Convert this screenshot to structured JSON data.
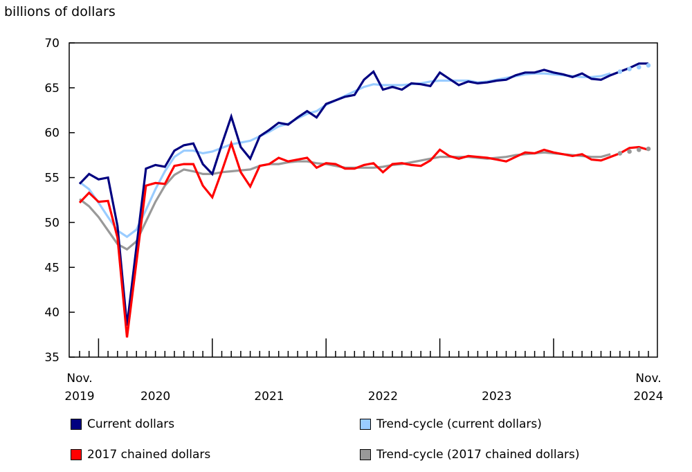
{
  "chart_data": {
    "type": "line",
    "ylabel": "billions of dollars",
    "ylim": [
      35,
      70
    ],
    "yticks": [
      35,
      40,
      45,
      50,
      55,
      60,
      65,
      70
    ],
    "x_start": "2019-11",
    "x_end": "2024-11",
    "x_tick_labels": [
      {
        "line1": "Nov.",
        "line2": "2019",
        "at": "2019-11"
      },
      {
        "line1": "",
        "line2": "2020",
        "at": "2020-07"
      },
      {
        "line1": "",
        "line2": "2021",
        "at": "2021-07"
      },
      {
        "line1": "",
        "line2": "2022",
        "at": "2022-07"
      },
      {
        "line1": "",
        "line2": "2023",
        "at": "2023-07"
      },
      {
        "line1": "Nov.",
        "line2": "2024",
        "at": "2024-11"
      }
    ],
    "grid": false,
    "legend_placement": "bottom",
    "series": [
      {
        "name": "Current dollars",
        "color": "#000080",
        "style": "line",
        "values": [
          54.3,
          55.4,
          54.8,
          55.0,
          49.6,
          38.5,
          47.3,
          56.0,
          56.4,
          56.2,
          58.0,
          58.6,
          58.8,
          56.5,
          55.4,
          58.7,
          61.8,
          58.4,
          57.1,
          59.6,
          60.3,
          61.1,
          60.9,
          61.7,
          62.4,
          61.7,
          63.2,
          63.6,
          64.0,
          64.2,
          65.9,
          66.8,
          64.8,
          65.1,
          64.8,
          65.5,
          65.4,
          65.2,
          66.7,
          66.0,
          65.3,
          65.7,
          65.5,
          65.6,
          65.8,
          65.9,
          66.4,
          66.7,
          66.7,
          67.0,
          66.7,
          66.5,
          66.2,
          66.6,
          66.0,
          65.9,
          66.4,
          66.8,
          67.2,
          67.7,
          67.7
        ]
      },
      {
        "name": "Trend-cycle (current dollars)",
        "color": "#99ccff",
        "style": "trend",
        "dotted_last": 4,
        "values": [
          54.5,
          53.7,
          52.2,
          50.6,
          49.1,
          48.4,
          49.2,
          51.4,
          53.7,
          55.7,
          57.3,
          58.0,
          58.0,
          57.7,
          57.9,
          58.3,
          58.7,
          58.9,
          59.1,
          59.6,
          60.1,
          60.7,
          61.0,
          61.6,
          62.1,
          62.4,
          63.1,
          63.6,
          64.1,
          64.6,
          65.1,
          65.4,
          65.3,
          65.3,
          65.3,
          65.4,
          65.5,
          65.7,
          65.8,
          65.8,
          65.8,
          65.8,
          65.6,
          65.7,
          65.9,
          66.1,
          66.3,
          66.5,
          66.6,
          66.6,
          66.5,
          66.4,
          66.3,
          66.2,
          66.2,
          66.3,
          66.6,
          66.8,
          67.1,
          67.3,
          67.5
        ]
      },
      {
        "name": "2017 chained dollars",
        "color": "#ff0000",
        "style": "line",
        "values": [
          52.2,
          53.3,
          52.3,
          52.4,
          48.3,
          37.2,
          45.6,
          54.1,
          54.4,
          54.3,
          56.3,
          56.5,
          56.5,
          54.1,
          52.8,
          55.7,
          58.8,
          55.6,
          54.0,
          56.3,
          56.5,
          57.2,
          56.8,
          57.0,
          57.2,
          56.1,
          56.6,
          56.5,
          56.0,
          56.0,
          56.4,
          56.6,
          55.6,
          56.5,
          56.6,
          56.4,
          56.3,
          56.9,
          58.1,
          57.4,
          57.1,
          57.4,
          57.3,
          57.2,
          57.0,
          56.8,
          57.3,
          57.8,
          57.7,
          58.1,
          57.8,
          57.6,
          57.4,
          57.6,
          57.0,
          56.9,
          57.3,
          57.7,
          58.3,
          58.4,
          58.1
        ]
      },
      {
        "name": "Trend-cycle (2017 chained dollars)",
        "color": "#999999",
        "style": "trend",
        "dotted_last": 4,
        "values": [
          52.6,
          51.8,
          50.6,
          49.1,
          47.6,
          47.0,
          47.9,
          50.1,
          52.3,
          54.1,
          55.3,
          55.9,
          55.7,
          55.4,
          55.4,
          55.6,
          55.7,
          55.8,
          55.9,
          56.3,
          56.5,
          56.5,
          56.7,
          56.8,
          56.8,
          56.6,
          56.5,
          56.3,
          56.1,
          56.1,
          56.1,
          56.1,
          56.2,
          56.4,
          56.5,
          56.7,
          56.9,
          57.1,
          57.3,
          57.3,
          57.3,
          57.3,
          57.2,
          57.1,
          57.2,
          57.3,
          57.5,
          57.6,
          57.7,
          57.8,
          57.7,
          57.6,
          57.5,
          57.4,
          57.3,
          57.3,
          57.6,
          57.7,
          57.9,
          58.1,
          58.2
        ]
      }
    ]
  }
}
